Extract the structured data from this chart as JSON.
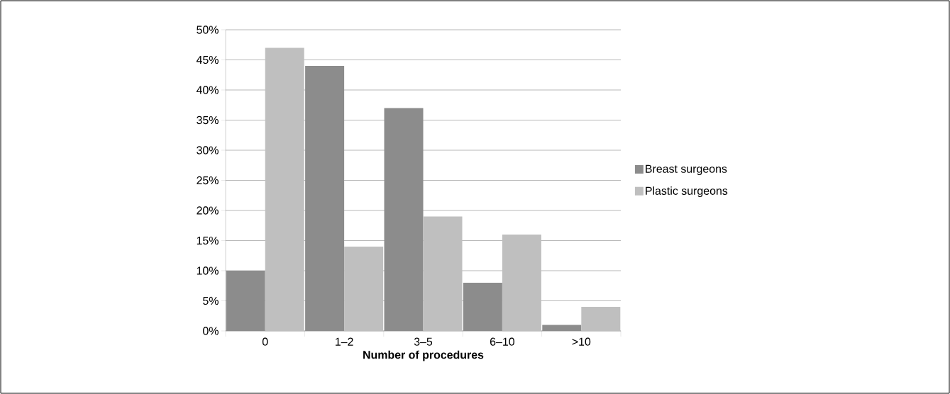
{
  "chart_data": {
    "type": "bar",
    "xlabel": "Number of procedures",
    "categories": [
      "0",
      "1–2",
      "3–5",
      "6–10",
      ">10"
    ],
    "series": [
      {
        "name": "Breast surgeons",
        "color": "#8c8c8c",
        "values": [
          10,
          44,
          37,
          8,
          1
        ]
      },
      {
        "name": "Plastic surgeons",
        "color": "#bfbfbf",
        "values": [
          47,
          14,
          19,
          16,
          4
        ]
      }
    ],
    "ylim": [
      0,
      50
    ],
    "yticks": [
      {
        "value": 0,
        "label": "0%"
      },
      {
        "value": 5,
        "label": "5%"
      },
      {
        "value": 10,
        "label": "10%"
      },
      {
        "value": 15,
        "label": "15%"
      },
      {
        "value": 20,
        "label": "20%"
      },
      {
        "value": 25,
        "label": "25%"
      },
      {
        "value": 30,
        "label": "30%"
      },
      {
        "value": 35,
        "label": "35%"
      },
      {
        "value": 40,
        "label": "40%"
      },
      {
        "value": 45,
        "label": "45%"
      },
      {
        "value": 50,
        "label": "50%"
      }
    ],
    "grid": "y",
    "legend": "right"
  }
}
